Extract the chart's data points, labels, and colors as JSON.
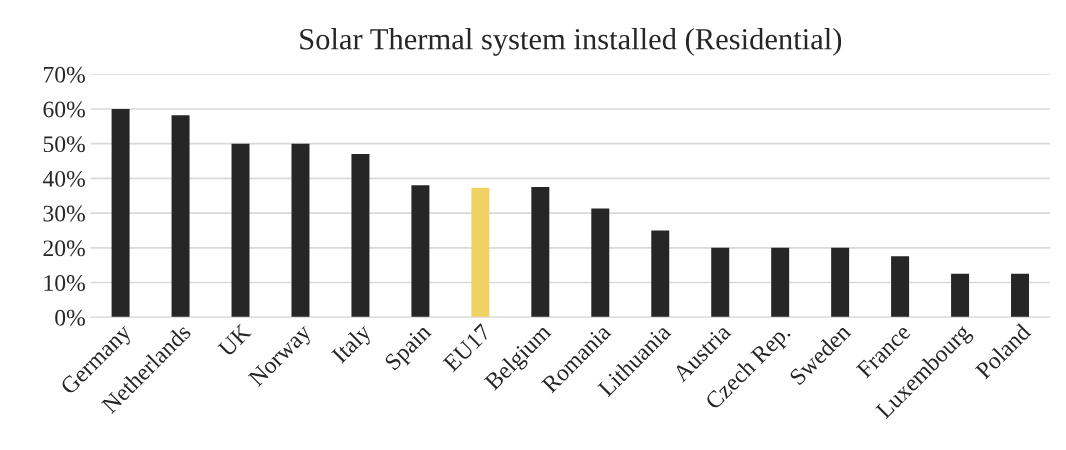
{
  "chart_data": {
    "type": "bar",
    "title": "Solar Thermal system installed (Residential)",
    "categories": [
      "Germany",
      "Netherlands",
      "UK",
      "Norway",
      "Italy",
      "Spain",
      "EU17",
      "Belgium",
      "Romania",
      "Lithuania",
      "Austria",
      "Czech Rep.",
      "Sweden",
      "France",
      "Luxembourg",
      "Poland"
    ],
    "values": [
      60,
      58.2,
      50,
      50,
      47,
      38,
      37.3,
      37.5,
      31.3,
      25,
      20,
      20,
      20,
      17.6,
      12.5,
      12.5
    ],
    "colors": [
      "#262626",
      "#262626",
      "#262626",
      "#262626",
      "#262626",
      "#262626",
      "#f0d264",
      "#262626",
      "#262626",
      "#262626",
      "#262626",
      "#262626",
      "#262626",
      "#262626",
      "#262626",
      "#262626"
    ],
    "ylim": [
      0,
      70
    ],
    "yticks": [
      {
        "value": 0,
        "label": "0%"
      },
      {
        "value": 10,
        "label": "10%"
      },
      {
        "value": 20,
        "label": "20%"
      },
      {
        "value": 30,
        "label": "30%"
      },
      {
        "value": 40,
        "label": "40%"
      },
      {
        "value": 50,
        "label": "50%"
      },
      {
        "value": 60,
        "label": "60%"
      },
      {
        "value": 70,
        "label": "70%"
      }
    ],
    "grid": "y",
    "legend": false
  }
}
